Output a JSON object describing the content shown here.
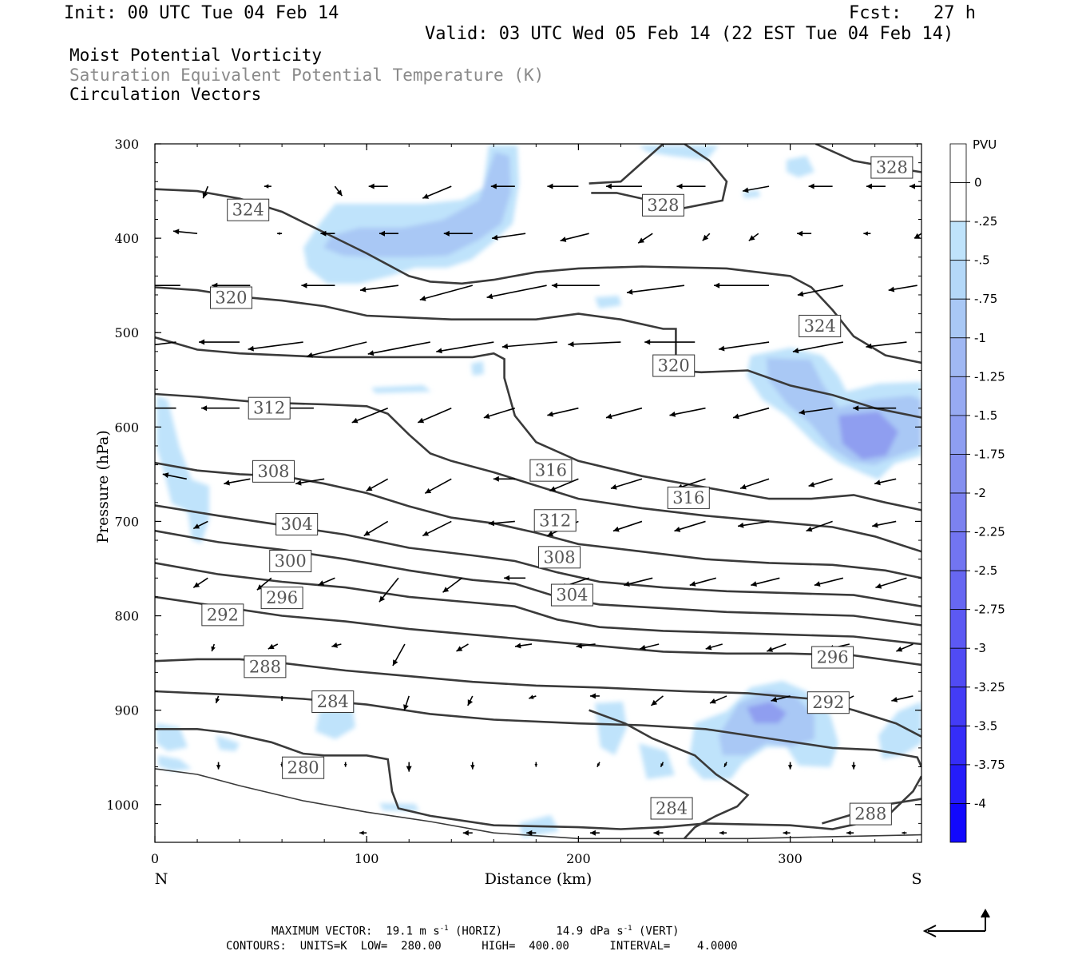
{
  "header": {
    "init": "Init: 00 UTC Tue 04 Feb 14",
    "fcst": "Fcst:   27 h",
    "valid": "Valid: 03 UTC Wed 05 Feb 14 (22 EST Tue 04 Feb 14)",
    "field1": "Moist Potential Vorticity",
    "field2": "Saturation Equivalent Potential Temperature (K)",
    "field3": "Circulation Vectors"
  },
  "footer": {
    "line1_a": "MAXIMUM VECTOR:  19.1 m s",
    "line1_b": "-1",
    "line1_c": " (HORIZ)        14.9 dPa s",
    "line1_d": "-1",
    "line1_e": " (VERT)",
    "line2": "CONTOURS:  UNITS=K  LOW=  280.00      HIGH=  400.00      INTERVAL=    4.0000"
  },
  "colors": {
    "contour": "#3a3a3a",
    "pv_light": "#bfe3fb",
    "pv_mid": "#a9c8f5",
    "pv_dark": "#8f9ef0",
    "arrow": "#000000"
  },
  "chart_data": {
    "type": "contour",
    "xlabel": "Distance (km)",
    "ylabel": "Pressure (hPa)",
    "xlim": [
      0,
      362
    ],
    "ylim": [
      1040,
      300
    ],
    "y_scale": "linear",
    "x_ticks": [
      "0",
      "100",
      "200",
      "300"
    ],
    "y_ticks": [
      "300",
      "400",
      "500",
      "600",
      "700",
      "800",
      "900",
      "1000"
    ],
    "x_end_labels": {
      "left": "N",
      "right": "S"
    },
    "contour_labels": [
      {
        "value": "328",
        "x": 348,
        "p": 325
      },
      {
        "value": "328",
        "x": 240,
        "p": 365
      },
      {
        "value": "324",
        "x": 44,
        "p": 370
      },
      {
        "value": "324",
        "x": 314,
        "p": 493
      },
      {
        "value": "320",
        "x": 36,
        "p": 463
      },
      {
        "value": "320",
        "x": 245,
        "p": 535
      },
      {
        "value": "316",
        "x": 187,
        "p": 646
      },
      {
        "value": "316",
        "x": 252,
        "p": 675
      },
      {
        "value": "312",
        "x": 54,
        "p": 580
      },
      {
        "value": "312",
        "x": 189,
        "p": 699
      },
      {
        "value": "308",
        "x": 56,
        "p": 647
      },
      {
        "value": "308",
        "x": 191,
        "p": 738
      },
      {
        "value": "304",
        "x": 67,
        "p": 703
      },
      {
        "value": "304",
        "x": 197,
        "p": 778
      },
      {
        "value": "300",
        "x": 64,
        "p": 742
      },
      {
        "value": "296",
        "x": 60,
        "p": 781
      },
      {
        "value": "296",
        "x": 320,
        "p": 844
      },
      {
        "value": "292",
        "x": 32,
        "p": 799
      },
      {
        "value": "292",
        "x": 318,
        "p": 892
      },
      {
        "value": "288",
        "x": 52,
        "p": 854
      },
      {
        "value": "288",
        "x": 338,
        "p": 1010
      },
      {
        "value": "284",
        "x": 84,
        "p": 891
      },
      {
        "value": "284",
        "x": 244,
        "p": 1004
      },
      {
        "value": "280",
        "x": 70,
        "p": 961
      }
    ],
    "colorbar": {
      "label": "PVU",
      "ticks": [
        "0",
        "-.25",
        "-.5",
        "-.75",
        "-1",
        "-1.25",
        "-1.5",
        "-1.75",
        "-2",
        "-2.25",
        "-2.5",
        "-2.75",
        "-3",
        "-3.25",
        "-3.5",
        "-3.75",
        "-4"
      ]
    }
  }
}
